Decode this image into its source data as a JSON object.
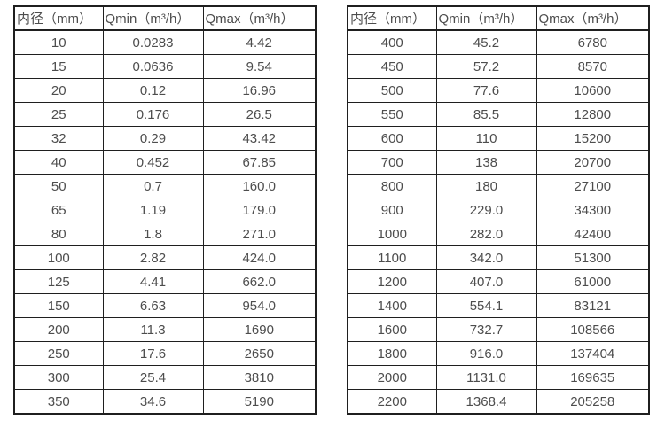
{
  "columns": [
    "内径（mm）",
    "Qmin（m³/h）",
    "Qmax（m³/h）"
  ],
  "tables": [
    {
      "name": "small-diameter-flow-table",
      "rows": [
        [
          "10",
          "0.0283",
          "4.42"
        ],
        [
          "15",
          "0.0636",
          "9.54"
        ],
        [
          "20",
          "0.12",
          "16.96"
        ],
        [
          "25",
          "0.176",
          "26.5"
        ],
        [
          "32",
          "0.29",
          "43.42"
        ],
        [
          "40",
          "0.452",
          "67.85"
        ],
        [
          "50",
          "0.7",
          "160.0"
        ],
        [
          "65",
          "1.19",
          "179.0"
        ],
        [
          "80",
          "1.8",
          "271.0"
        ],
        [
          "100",
          "2.82",
          "424.0"
        ],
        [
          "125",
          "4.41",
          "662.0"
        ],
        [
          "150",
          "6.63",
          "954.0"
        ],
        [
          "200",
          "11.3",
          "1690"
        ],
        [
          "250",
          "17.6",
          "2650"
        ],
        [
          "300",
          "25.4",
          "3810"
        ],
        [
          "350",
          "34.6",
          "5190"
        ]
      ]
    },
    {
      "name": "large-diameter-flow-table",
      "rows": [
        [
          "400",
          "45.2",
          "6780"
        ],
        [
          "450",
          "57.2",
          "8570"
        ],
        [
          "500",
          "77.6",
          "10600"
        ],
        [
          "550",
          "85.5",
          "12800"
        ],
        [
          "600",
          "110",
          "15200"
        ],
        [
          "700",
          "138",
          "20700"
        ],
        [
          "800",
          "180",
          "27100"
        ],
        [
          "900",
          "229.0",
          "34300"
        ],
        [
          "1000",
          "282.0",
          "42400"
        ],
        [
          "1100",
          "342.0",
          "51300"
        ],
        [
          "1200",
          "407.0",
          "61000"
        ],
        [
          "1400",
          "554.1",
          "83121"
        ],
        [
          "1600",
          "732.7",
          "108566"
        ],
        [
          "1800",
          "916.0",
          "137404"
        ],
        [
          "2000",
          "1131.0",
          "169635"
        ],
        [
          "2200",
          "1368.4",
          "205258"
        ]
      ]
    }
  ]
}
